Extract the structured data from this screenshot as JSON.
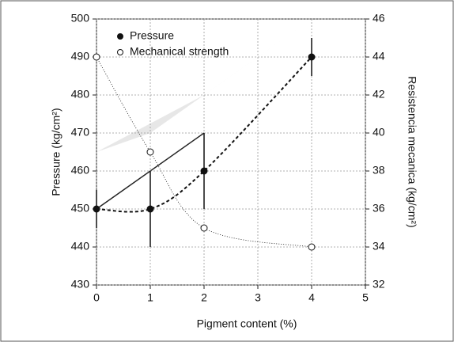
{
  "chart_data": {
    "type": "line",
    "xlabel": "Pigment content (%)",
    "ylabel": "Pressure (kg/cm²)",
    "y2label": "Resistencia mecanica (kg/cm²)",
    "xlim": [
      0,
      5
    ],
    "xticks": [
      0,
      1,
      2,
      3,
      4,
      5
    ],
    "ylim": [
      430,
      500
    ],
    "yticks": [
      430,
      440,
      450,
      460,
      470,
      480,
      490,
      500
    ],
    "y2lim": [
      32,
      46
    ],
    "y2ticks": [
      32,
      34,
      36,
      38,
      40,
      42,
      44,
      46
    ],
    "grid": true,
    "legend": "upper left",
    "series": [
      {
        "name": "Pressure",
        "color": "#111111",
        "marker": "filled",
        "x": [
          0,
          1,
          2,
          4
        ],
        "values": [
          450,
          450,
          460,
          490
        ],
        "errors": [
          5,
          10,
          10,
          5
        ]
      },
      {
        "name": "Mechanical strength",
        "color": "#111111",
        "marker": "open",
        "axis": "y2",
        "x": [
          0,
          1,
          2,
          4
        ],
        "values": [
          44,
          39,
          35,
          34
        ]
      }
    ]
  }
}
